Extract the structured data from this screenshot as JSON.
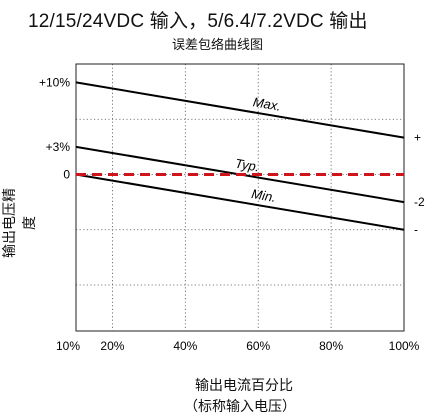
{
  "chart_data": {
    "type": "line",
    "title": "12/15/24VDC 输入，5/6.4/7.2VDC 输出",
    "subtitle": "误差包络曲线图",
    "ylabel": "输出电压精度",
    "xlabel_line1": "输出电流百分比",
    "xlabel_line2": "（标称输入电压）",
    "xlim": [
      10,
      100
    ],
    "ylim": [
      -17,
      12
    ],
    "x_ticks": [
      {
        "value": 10,
        "label": "10%"
      },
      {
        "value": 20,
        "label": "20%"
      },
      {
        "value": 40,
        "label": "40%"
      },
      {
        "value": 60,
        "label": "60%"
      },
      {
        "value": 80,
        "label": "80%"
      },
      {
        "value": 100,
        "label": "100%"
      }
    ],
    "y_ticks": [
      {
        "value": 10,
        "label": "+10%"
      },
      {
        "value": 3,
        "label": "+3%"
      },
      {
        "value": 0,
        "label": "0"
      }
    ],
    "grid": true,
    "grid_x": [
      10,
      20,
      40,
      60,
      80,
      100
    ],
    "grid_y": [
      12,
      6,
      0,
      -6,
      -12,
      -17
    ],
    "series": [
      {
        "name": "Max.",
        "x": [
          10,
          100
        ],
        "y": [
          10,
          4
        ]
      },
      {
        "name": "Typ.",
        "x": [
          10,
          100
        ],
        "y": [
          3,
          -3
        ]
      },
      {
        "name": "Min.",
        "x": [
          10,
          100
        ],
        "y": [
          0,
          -6
        ]
      }
    ],
    "reference_line": {
      "y": 0,
      "color": "#d0141c"
    },
    "right_edge_labels": [
      "+",
      "-2",
      "-"
    ]
  }
}
